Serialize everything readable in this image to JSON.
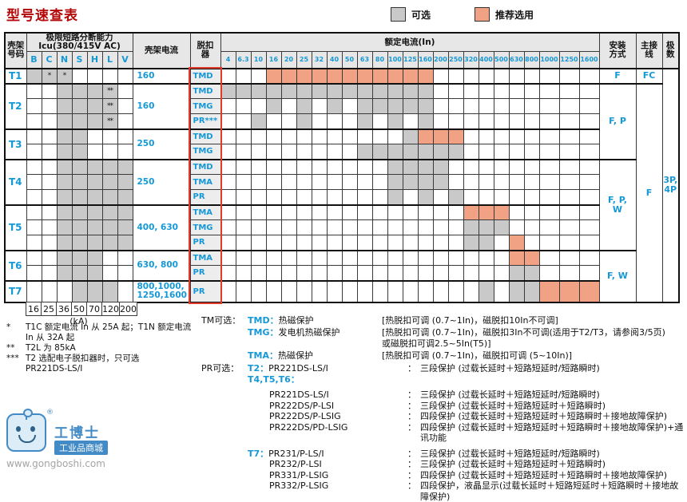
{
  "title": "型号速查表",
  "legend": {
    "optional_label": "可选",
    "recommended_label": "推荐选用"
  },
  "colors": {
    "optional_fill": "#c9c9c9",
    "recommended_fill": "#f2a284",
    "accent_blue": "#1598d6",
    "title_red": "#b40808",
    "trip_outline_red": "#e03a2a"
  },
  "table": {
    "headers": {
      "frame_no": [
        "壳架",
        "号码"
      ],
      "icu_title": [
        "极限短路分断能力",
        "Icu(380/415V AC)"
      ],
      "frame_current": "壳架电流",
      "trip": [
        "脱扣",
        "器"
      ],
      "rated": "额定电流(In)",
      "install": [
        "安装",
        "方式"
      ],
      "connection": [
        "主接",
        "线"
      ],
      "poles": [
        "极",
        "数"
      ]
    },
    "icu_columns": [
      "B",
      "C",
      "N",
      "S",
      "H",
      "L",
      "V"
    ],
    "current_columns": [
      "4",
      "6.3",
      "10",
      "16",
      "20",
      "25",
      "32",
      "40",
      "50",
      "63",
      "80",
      "100",
      "125",
      "160",
      "200",
      "250",
      "320",
      "400",
      "500",
      "630",
      "800",
      "1000",
      "1250",
      "1600"
    ],
    "ka_values": [
      "16",
      "25",
      "36",
      "50",
      "70",
      "120",
      "200"
    ],
    "ka_label": "(kA)",
    "rows": [
      {
        "frame": "T1",
        "span": 1,
        "fc": [
          "160"
        ],
        "icu": [
          "B",
          "C",
          "N"
        ],
        "marks": [
          [
            "C",
            "*"
          ],
          [
            "N",
            "*"
          ]
        ],
        "trip": "TMD",
        "gray": [],
        "orange": [
          "16",
          "20",
          "25",
          "32",
          "40",
          "50",
          "63",
          "80",
          "100",
          "125",
          "160"
        ],
        "group": true
      },
      {
        "frame": "T2",
        "span": 3,
        "fc": [
          "160"
        ],
        "icu": [
          "N",
          "S",
          "H",
          "L"
        ],
        "marks": [
          [
            "L",
            "**"
          ]
        ],
        "trip": "TMD",
        "gray": [
          "4",
          "6.3",
          "10",
          "16",
          "20",
          "25",
          "32",
          "40",
          "50",
          "63",
          "80",
          "100",
          "125",
          "160"
        ],
        "orange": [],
        "group": true
      },
      {
        "icu": [
          "N",
          "S",
          "H",
          "L"
        ],
        "marks": [
          [
            "L",
            "**"
          ]
        ],
        "trip": "TMG",
        "gray": [
          "16",
          "25",
          "40",
          "63",
          "80",
          "100",
          "125",
          "160"
        ],
        "orange": []
      },
      {
        "icu": [
          "N",
          "S",
          "H",
          "L"
        ],
        "marks": [
          [
            "L",
            "**"
          ]
        ],
        "trip": "PR***",
        "gray": [
          "10",
          "25",
          "63",
          "100",
          "160"
        ],
        "orange": []
      },
      {
        "frame": "T3",
        "span": 2,
        "fc": [
          "250"
        ],
        "icu": [
          "N",
          "S"
        ],
        "marks": [],
        "trip": "TMD",
        "gray": [
          "125"
        ],
        "orange": [
          "160",
          "200",
          "250"
        ],
        "group": true
      },
      {
        "icu": [
          "N",
          "S"
        ],
        "marks": [],
        "trip": "TMG",
        "gray": [
          "63",
          "80",
          "100",
          "125",
          "160",
          "200",
          "250"
        ],
        "orange": []
      },
      {
        "frame": "T4",
        "span": 3,
        "fc": [
          "250"
        ],
        "icu": [
          "N",
          "S",
          "H",
          "L",
          "V"
        ],
        "marks": [],
        "trip": "TMD",
        "gray": [
          "100",
          "125",
          "160",
          "200"
        ],
        "orange": [],
        "group": true
      },
      {
        "icu": [
          "N",
          "S",
          "H",
          "L",
          "V"
        ],
        "marks": [],
        "trip": "TMA",
        "gray": [
          "100",
          "125",
          "160",
          "200"
        ],
        "orange": []
      },
      {
        "icu": [
          "N",
          "S",
          "H",
          "L",
          "V"
        ],
        "marks": [],
        "trip": "PR",
        "gray": [
          "100",
          "160",
          "250"
        ],
        "orange": []
      },
      {
        "frame": "T5",
        "span": 3,
        "fc": [
          "400, 630"
        ],
        "icu": [
          "N",
          "S",
          "H",
          "L",
          "V"
        ],
        "marks": [],
        "trip": "TMA",
        "gray": [],
        "orange": [
          "320",
          "400",
          "500"
        ],
        "group": true
      },
      {
        "icu": [
          "N",
          "S",
          "H",
          "L",
          "V"
        ],
        "marks": [],
        "trip": "TMG",
        "gray": [
          "320",
          "400",
          "500"
        ],
        "orange": []
      },
      {
        "icu": [
          "N",
          "S",
          "H",
          "L",
          "V"
        ],
        "marks": [],
        "trip": "PR",
        "gray": [
          "320",
          "400"
        ],
        "orange": [
          "630"
        ]
      },
      {
        "frame": "T6",
        "span": 2,
        "fc": [
          "630, 800"
        ],
        "icu": [
          "N",
          "S",
          "H"
        ],
        "marks": [],
        "trip": "TMA",
        "gray": [],
        "orange": [
          "630",
          "800"
        ],
        "group": true
      },
      {
        "icu": [
          "N",
          "S",
          "H"
        ],
        "marks": [],
        "trip": "PR",
        "gray": [
          "630",
          "800"
        ],
        "orange": []
      },
      {
        "frame": "T7",
        "span": 1,
        "fc": [
          "800,1000,",
          "1250,1600"
        ],
        "icu": [
          "S",
          "H",
          "L"
        ],
        "marks": [],
        "trip": "PR",
        "gray": [
          "400",
          "630",
          "800"
        ],
        "orange": [
          "1000",
          "1250",
          "1600"
        ],
        "group": true,
        "tall": true
      }
    ],
    "install_spans": [
      {
        "start": 0,
        "span": 1,
        "label": [
          "F"
        ]
      },
      {
        "start": 1,
        "span": 5,
        "label": [
          "F, P"
        ]
      },
      {
        "start": 6,
        "span": 6,
        "label": [
          "F, P,",
          "W"
        ]
      },
      {
        "start": 12,
        "span": 3,
        "label": [
          "F, W"
        ]
      }
    ],
    "connection_spans": [
      {
        "start": 0,
        "span": 1,
        "label": [
          "FC"
        ]
      },
      {
        "start": 1,
        "span": 14,
        "label": [
          "F"
        ]
      }
    ],
    "poles_spans": [
      {
        "start": 0,
        "span": 15,
        "label": [
          "3P,",
          "4P"
        ]
      }
    ]
  },
  "notes": [
    {
      "mark": "*",
      "lines": [
        "T1C 额定电流 In 从 25A 起；T1N 额定电流",
        "In 从 32A 起"
      ]
    },
    {
      "mark": "**",
      "lines": [
        "T2L 为 85kA"
      ]
    },
    {
      "mark": "***",
      "lines": [
        "T2 选配电子脱扣器时，只可选",
        "PR221DS-LS/I"
      ]
    }
  ],
  "tm_options": {
    "rows": [
      {
        "c1": "TM可选：",
        "b": "TMD：",
        "t": "热磁保护",
        "d": "[热脱扣可调 (0.7~1In)，磁脱扣10In不可调]"
      },
      {
        "c1": "",
        "b": "TMG：",
        "t": "发电机热磁保护",
        "d": "[热脱扣可调 (0.7~1In)，磁脱扣3In不可调(适用于T2/T3，请参阅3/5页)"
      },
      {
        "c1": "",
        "b": "",
        "t": "",
        "d": "或磁脱扣可调2.5~5In(T5)]"
      },
      {
        "c1": "",
        "b": "TMA：",
        "t": "热磁保护",
        "d": "[热脱扣可调 (0.7~1In)，磁脱扣可调 (5~10In)]"
      }
    ]
  },
  "pr_options": {
    "rows": [
      {
        "c1": "PR可选：",
        "b": "T2：",
        "n": "PR221DS-LS/I",
        "colon": "：",
        "d": "三段保护 (过载长延时＋短路短延时/短路瞬时)",
        "indent": false,
        "gap": false
      },
      {
        "c1": "",
        "b": "T4,T5,T6：",
        "n": "",
        "colon": "",
        "d": "",
        "indent": false,
        "gap": false
      },
      {
        "c1": "",
        "b": "",
        "n": "PR221DS-LS/I",
        "colon": "：",
        "d": "三段保护 (过载长延时＋短路短延时/短路瞬时)",
        "indent": true,
        "gap": true
      },
      {
        "c1": "",
        "b": "",
        "n": "PR222DS/P-LSI",
        "colon": "：",
        "d": "三段保护 (过载长延时＋短路短延时＋短路瞬时)",
        "indent": true,
        "gap": false
      },
      {
        "c1": "",
        "b": "",
        "n": "PR222DS/P-LSIG",
        "colon": "：",
        "d": "四段保护 (过载长延时＋短路短延时＋短路瞬时＋接地故障保护)",
        "indent": true,
        "gap": false
      },
      {
        "c1": "",
        "b": "",
        "n": "PR222DS/PD-LSIG",
        "colon": "：",
        "d": "四段保护 (过载长延时＋短路短延时＋短路瞬时＋接地故障保护)+通讯功能",
        "indent": true,
        "gap": false
      },
      {
        "c1": "",
        "b": "T7：",
        "n": "PR231/P-LS/I",
        "colon": "：",
        "d": "三段保护 (过载长延时＋短路短延时/短路瞬时)",
        "indent": false,
        "gap": true
      },
      {
        "c1": "",
        "b": "",
        "n": "PR232/P-LSI",
        "colon": "：",
        "d": "三段保护 (过载长延时＋短路短延时＋短路瞬时)",
        "indent": true,
        "gap": false
      },
      {
        "c1": "",
        "b": "",
        "n": "PR331/P-LSIG",
        "colon": "：",
        "d": "四段保护 (过载长延时＋短路短延时＋短路瞬时＋接地故障保护)",
        "indent": true,
        "gap": false
      },
      {
        "c1": "",
        "b": "",
        "n": "PR332/P-LSIG",
        "colon": "：",
        "d": "四段保护，液晶显示(过载长延时＋短路短延时＋短路瞬时＋接地故障保护)",
        "indent": true,
        "gap": false
      }
    ]
  },
  "watermark": {
    "name": "工博士",
    "tagline": "工业品商城",
    "url": "www.gongboshi.com",
    "reg": "®"
  }
}
